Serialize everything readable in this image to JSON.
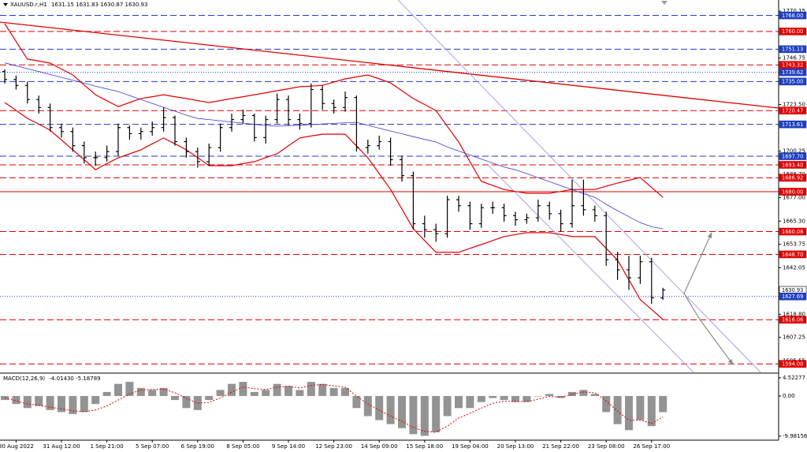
{
  "chart_data": {
    "type": "candlestick",
    "title": "XAUUSD.r,H1",
    "header": [
      1631.15,
      1631.83,
      1630.87,
      1630.93
    ],
    "categories": [
      null,
      "30 Aug 2022",
      null,
      null,
      null,
      "31 Aug 12:00",
      null,
      null,
      null,
      "1 Sep 21:00",
      null,
      null,
      null,
      "5 Sep 07:00",
      null,
      null,
      null,
      "6 Sep 19:00",
      null,
      null,
      null,
      "8 Sep 05:00",
      null,
      null,
      null,
      "9 Sep 14:00",
      null,
      null,
      null,
      "12 Sep 23:00",
      null,
      null,
      null,
      "14 Sep 09:00",
      null,
      null,
      null,
      "15 Sep 18:00",
      null,
      null,
      null,
      "19 Sep 04:00",
      null,
      null,
      null,
      "20 Sep 13:00",
      null,
      null,
      null,
      "21 Sep 22:00",
      null,
      null,
      null,
      "23 Sep 08:00",
      null,
      null,
      null,
      "26 Sep 17:00",
      null
    ],
    "open": [
      1740,
      1736,
      1733,
      1726,
      1722,
      1712,
      1710,
      1703,
      1697,
      1697,
      1700,
      1712,
      1709,
      1710,
      1712,
      1717,
      1705,
      1700,
      1695,
      1702,
      1712,
      1716,
      1718,
      1707,
      1716,
      1726,
      1716,
      1714,
      1731,
      1724,
      1722,
      1727,
      1702,
      1703,
      1705,
      1696,
      1688,
      1664,
      1661,
      1659,
      1676,
      1673,
      1664,
      1672,
      1672,
      1668,
      1666,
      1667,
      1673,
      1669,
      1664,
      1673,
      1671,
      1668,
      1646,
      1641,
      1637,
      1645,
      1627
    ],
    "high": [
      1741,
      1738,
      1735,
      1728,
      1724,
      1714,
      1712,
      1705,
      1700,
      1703,
      1714,
      1713,
      1712,
      1715,
      1722,
      1718,
      1707,
      1702,
      1704,
      1714,
      1719,
      1721,
      1719,
      1718,
      1729,
      1728,
      1719,
      1734,
      1733,
      1726,
      1730,
      1728,
      1706,
      1708,
      1707,
      1698,
      1690,
      1668,
      1664,
      1678,
      1678,
      1675,
      1674,
      1675,
      1674,
      1670,
      1669,
      1676,
      1675,
      1671,
      1686,
      1686,
      1673,
      1670,
      1650,
      1648,
      1648,
      1647,
      1632
    ],
    "low": [
      1734,
      1731,
      1724,
      1719,
      1710,
      1707,
      1700,
      1694,
      1693,
      1695,
      1698,
      1706,
      1706,
      1708,
      1710,
      1703,
      1697,
      1692,
      1693,
      1700,
      1710,
      1714,
      1705,
      1704,
      1714,
      1713,
      1711,
      1712,
      1721,
      1719,
      1720,
      1700,
      1699,
      1701,
      1693,
      1685,
      1661,
      1657,
      1655,
      1657,
      1670,
      1661,
      1662,
      1669,
      1665,
      1663,
      1664,
      1665,
      1666,
      1660,
      1662,
      1668,
      1665,
      1643,
      1636,
      1631,
      1634,
      1624,
      1626
    ],
    "close": [
      1736,
      1733,
      1726,
      1722,
      1712,
      1710,
      1703,
      1697,
      1697,
      1700,
      1712,
      1709,
      1710,
      1712,
      1717,
      1705,
      1700,
      1695,
      1702,
      1712,
      1716,
      1718,
      1707,
      1716,
      1726,
      1716,
      1714,
      1731,
      1724,
      1722,
      1727,
      1702,
      1703,
      1705,
      1696,
      1688,
      1664,
      1661,
      1659,
      1676,
      1673,
      1664,
      1672,
      1672,
      1668,
      1666,
      1667,
      1673,
      1669,
      1664,
      1673,
      1671,
      1668,
      1646,
      1641,
      1637,
      1645,
      1627,
      1630.93
    ],
    "color": "#000000",
    "ylim": [
      1589.8,
      1775.7
    ],
    "yticks": [
      1770.15,
      1746.75,
      {
        "value": 1723.5,
        "label": "1723.50"
      },
      1700.25,
      {
        "value": 1688.7,
        "label": "1688.70"
      },
      {
        "value": 1677,
        "label": "1677.00"
      },
      {
        "value": 1665.3,
        "label": "1665.30"
      },
      1653.75,
      1642.05,
      {
        "value": 1618.8,
        "label": "1618.80"
      },
      1607.25,
      1595.55
    ],
    "bands": {
      "color": "#e00000",
      "upper": [
        1763.9,
        1755.0,
        1746.2,
        1745.2,
        1744.2,
        1741.2,
        1738.3,
        1733.3,
        1728.4,
        1725.4,
        1722.5,
        1724.5,
        1726.5,
        1727.4,
        1728.4,
        1727.4,
        1726.5,
        1725.5,
        1724.5,
        1725.5,
        1726.5,
        1727.4,
        1728.4,
        1729.4,
        1730.4,
        1731.4,
        1732.4,
        1732.7,
        1733.1,
        1734.7,
        1736.3,
        1737.3,
        1738.3,
        1736.3,
        1734.3,
        1730.4,
        1726.5,
        1723.5,
        1720.5,
        1712.6,
        1704.8,
        1694.9,
        1685.1,
        1683.1,
        1681.1,
        1680.1,
        1679.2,
        1679.2,
        1679.2,
        1680.1,
        1681.1,
        1681.1,
        1681.1,
        1682.7,
        1684.3,
        1685.7,
        1687.1,
        1682.1,
        1677.2
      ],
      "lower": [
        1724.5,
        1720.6,
        1716.6,
        1713.7,
        1710.7,
        1705.8,
        1700.9,
        1696.0,
        1691.0,
        1694.0,
        1696.9,
        1698.9,
        1700.9,
        1703.9,
        1706.8,
        1703.9,
        1700.9,
        1697.0,
        1693.0,
        1693.0,
        1693.0,
        1694.0,
        1695.0,
        1697.0,
        1698.9,
        1702.9,
        1706.8,
        1707.8,
        1708.7,
        1708.7,
        1708.7,
        1702.8,
        1696.9,
        1689.0,
        1681.1,
        1671.3,
        1661.5,
        1655.6,
        1649.7,
        1649.7,
        1649.7,
        1651.7,
        1653.6,
        1655.6,
        1657.6,
        1658.6,
        1659.5,
        1659.5,
        1659.5,
        1658.6,
        1657.6,
        1657.6,
        1657.6,
        1651.7,
        1645.8,
        1636.0,
        1626.1,
        1621.2,
        1616.2
      ]
    },
    "moving_average": {
      "color": "#3a3ad0",
      "values": [
        1744.3,
        1742.9,
        1741.4,
        1740.0,
        1738.5,
        1737.1,
        1735.6,
        1734.2,
        1732.7,
        1731.3,
        1730.0,
        1728.0,
        1726.0,
        1724.1,
        1722.1,
        1720.2,
        1718.2,
        1716.6,
        1716.0,
        1715.4,
        1714.8,
        1714.2,
        1713.6,
        1713.1,
        1712.7,
        1712.9,
        1713.2,
        1713.5,
        1713.8,
        1714.1,
        1714.4,
        1714.6,
        1713.1,
        1711.7,
        1710.3,
        1708.9,
        1707.5,
        1706.1,
        1704.8,
        1702.3,
        1700.3,
        1698.3,
        1696.3,
        1694.3,
        1692.3,
        1690.9,
        1689.0,
        1687.0,
        1685.0,
        1683.0,
        1681.0,
        1679.0,
        1677.2,
        1673.7,
        1670.5,
        1667.5,
        1664.5,
        1662.5,
        1661.5
      ]
    },
    "levels": [
      {
        "value": 1768,
        "label": "1768.00",
        "color": "#1f3fbf",
        "style": "dash"
      },
      {
        "value": 1760,
        "label": "1760.00",
        "color": "#e00000",
        "style": "dash"
      },
      {
        "value": 1751.13,
        "label": "1751.13",
        "color": "#1f3fbf",
        "style": "dash"
      },
      {
        "value": 1743.32,
        "label": "1743.32",
        "color": "#e00000",
        "style": "dash"
      },
      {
        "value": 1739.62,
        "label": "1739.62",
        "color": "#1f3fbf",
        "style": "dot"
      },
      {
        "value": 1735,
        "label": "1735.00",
        "color": "#1f3fbf",
        "style": "dash"
      },
      {
        "value": 1720.47,
        "label": "1720.47",
        "color": "#e00000",
        "style": "dash"
      },
      {
        "value": 1713.61,
        "label": "1713.61",
        "color": "#1f3fbf",
        "style": "dash"
      },
      {
        "value": 1697.7,
        "label": "1697.70",
        "color": "#1f3fbf",
        "style": "dash"
      },
      {
        "value": 1693.4,
        "label": "1693.40",
        "color": "#e00000",
        "style": "dash"
      },
      {
        "value": 1686.92,
        "label": "1686.92",
        "color": "#e00000",
        "style": "dash"
      },
      {
        "value": 1680,
        "label": "1680.00",
        "color": "#e00000",
        "style": "solid"
      },
      {
        "value": 1660.08,
        "label": "1660.08",
        "color": "#e00000",
        "style": "dash"
      },
      {
        "value": 1648.7,
        "label": "1648.70",
        "color": "#e00000",
        "style": "dash"
      },
      {
        "value": 1630.93,
        "label": "1630.93",
        "color": "#ffffff",
        "text_color": "#000000",
        "style": "none"
      },
      {
        "value": 1627.69,
        "label": "1627.69",
        "color": "#1f3fbf",
        "style": "dot"
      },
      {
        "value": 1616.06,
        "label": "1616.06",
        "color": "#e00000",
        "style": "dash"
      },
      {
        "value": 1594,
        "label": "1594.00",
        "color": "#e00000",
        "style": "dash"
      }
    ],
    "macd": {
      "label": "MACD(12,26,9)",
      "main": {
        "value": -4.0143,
        "label": "-4.01430"
      },
      "signal_value": -5.18789,
      "histogram": [
        -1,
        -2,
        -3,
        -2.5,
        -3.5,
        -4,
        -4.5,
        -4,
        -2,
        1,
        3,
        3.5,
        2,
        1.5,
        2,
        -1,
        -3,
        -3.5,
        -1,
        1.5,
        3,
        3.5,
        1,
        1.5,
        3,
        2.5,
        1.5,
        3.5,
        3,
        2,
        2,
        -3,
        -5,
        -6,
        -7,
        -8,
        -9.5,
        -9.9,
        -9,
        -5,
        -3,
        -3,
        -1.5,
        -0.5,
        -1,
        -1.5,
        -1.5,
        0,
        0.5,
        -0.5,
        1,
        1.5,
        0.5,
        -4,
        -7,
        -8.5,
        -6,
        -7.5,
        -4.0143
      ],
      "signal": [
        -0.5,
        -1.2,
        -2,
        -2.3,
        -2.8,
        -3.2,
        -3.7,
        -3.9,
        -3.5,
        -2.5,
        -1,
        0.5,
        1.5,
        1.6,
        1.7,
        0.8,
        -0.6,
        -1.8,
        -1.6,
        -0.5,
        1,
        2.2,
        1.8,
        1.6,
        2.2,
        2.4,
        2,
        2.6,
        2.9,
        2.5,
        2.2,
        0,
        -2,
        -3.5,
        -5,
        -6.3,
        -7.8,
        -8.8,
        -9,
        -7.5,
        -5.5,
        -4.3,
        -3,
        -1.8,
        -1.3,
        -1.4,
        -1.4,
        -0.8,
        -0.1,
        -0.3,
        0.4,
        1,
        0.8,
        -1.2,
        -3.8,
        -6,
        -6,
        -6.8,
        -5.18789
      ],
      "histogram_color": "#808080",
      "signal_color": "#e00000",
      "ylim": [
        -10.98,
        5.29
      ],
      "yticks": [
        4.52277,
        {
          "value": 0,
          "label": "0.00"
        },
        -9.98156
      ]
    }
  }
}
